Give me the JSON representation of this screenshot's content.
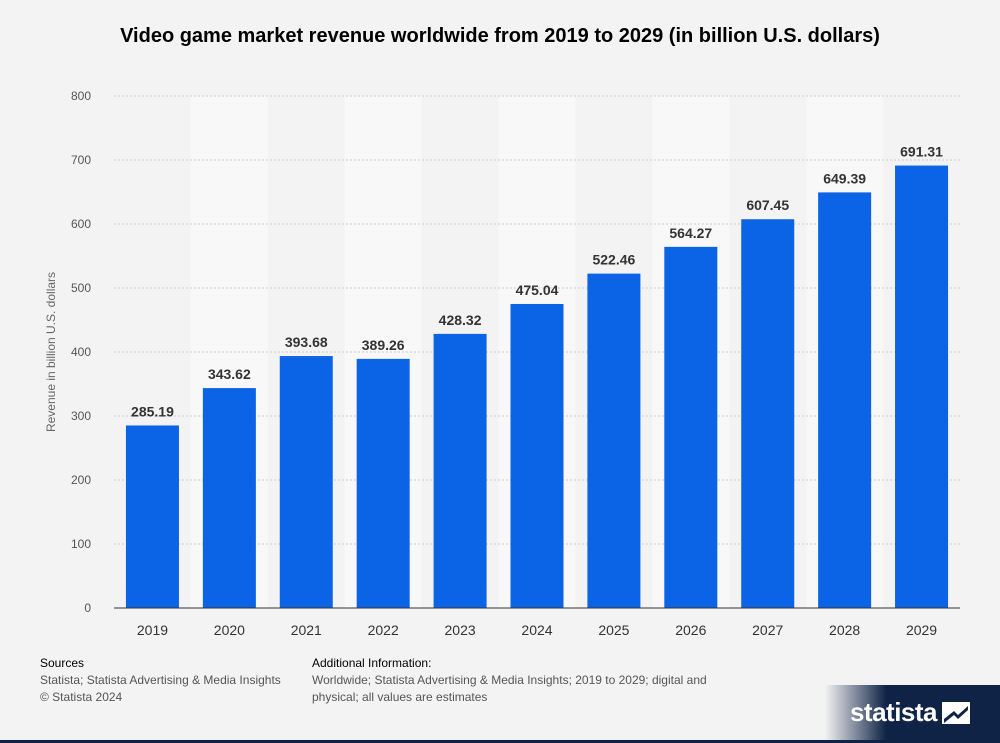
{
  "title": "Video game market revenue worldwide from 2019 to 2029 (in billion U.S. dollars)",
  "footer": {
    "sources_heading": "Sources",
    "sources_line1": "Statista; Statista Advertising & Media Insights",
    "sources_line2": "© Statista 2024",
    "info_heading": "Additional Information:",
    "info_text": "Worldwide; Statista Advertising & Media Insights; 2019 to 2029; digital and physical; all values are estimates"
  },
  "brand": {
    "name": "statista",
    "icon": "statista-logo-icon",
    "color": "#0f2346"
  },
  "chart_data": {
    "type": "bar",
    "title": "Video game market revenue worldwide from 2019 to 2029 (in billion U.S. dollars)",
    "xlabel": "",
    "ylabel": "Revenue in billion U.S. dollars",
    "categories": [
      "2019",
      "2020",
      "2021",
      "2022",
      "2023",
      "2024",
      "2025",
      "2026",
      "2027",
      "2028",
      "2029"
    ],
    "values": [
      285.19,
      343.62,
      393.68,
      389.26,
      428.32,
      475.04,
      522.46,
      564.27,
      607.45,
      649.39,
      691.31
    ],
    "value_labels": [
      "285.19",
      "343.62",
      "393.68",
      "389.26",
      "428.32",
      "475.04",
      "522.46",
      "564.27",
      "607.45",
      "649.39",
      "691.31"
    ],
    "ylim": [
      0,
      800
    ],
    "yticks": [
      "0",
      "100",
      "200",
      "300",
      "400",
      "500",
      "600",
      "700",
      "800"
    ],
    "grid": true,
    "bar_color": "#0b63e5",
    "alt_band_color": "#f8f8f8"
  }
}
